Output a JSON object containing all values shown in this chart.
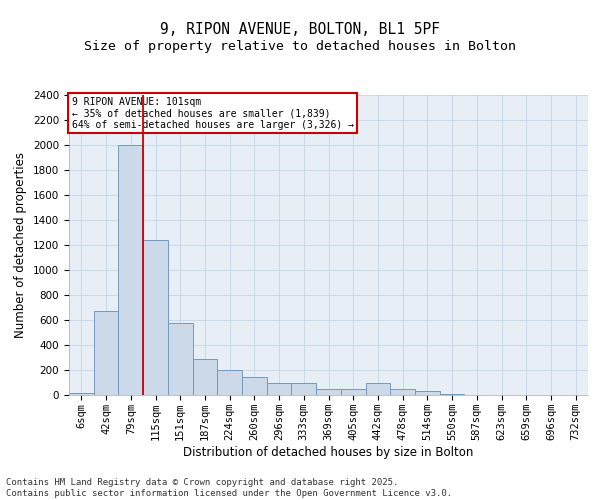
{
  "title_line1": "9, RIPON AVENUE, BOLTON, BL1 5PF",
  "title_line2": "Size of property relative to detached houses in Bolton",
  "xlabel": "Distribution of detached houses by size in Bolton",
  "ylabel": "Number of detached properties",
  "bar_color": "#ccd9e8",
  "bar_edge_color": "#7399be",
  "grid_color": "#c5d5e5",
  "background_color": "#e8eef5",
  "vline_color": "#cc0000",
  "vline_position": 2.5,
  "annotation_text": "9 RIPON AVENUE: 101sqm\n← 35% of detached houses are smaller (1,839)\n64% of semi-detached houses are larger (3,326) →",
  "annotation_box_color": "#cc0000",
  "categories": [
    "6sqm",
    "42sqm",
    "79sqm",
    "115sqm",
    "151sqm",
    "187sqm",
    "224sqm",
    "260sqm",
    "296sqm",
    "333sqm",
    "369sqm",
    "405sqm",
    "442sqm",
    "478sqm",
    "514sqm",
    "550sqm",
    "587sqm",
    "623sqm",
    "659sqm",
    "696sqm",
    "732sqm"
  ],
  "values": [
    15,
    670,
    2000,
    1240,
    580,
    290,
    200,
    145,
    100,
    100,
    50,
    50,
    100,
    50,
    30,
    5,
    3,
    2,
    1,
    1,
    1
  ],
  "ylim": [
    0,
    2400
  ],
  "yticks": [
    0,
    200,
    400,
    600,
    800,
    1000,
    1200,
    1400,
    1600,
    1800,
    2000,
    2200,
    2400
  ],
  "footer_text": "Contains HM Land Registry data © Crown copyright and database right 2025.\nContains public sector information licensed under the Open Government Licence v3.0.",
  "title_fontsize": 10.5,
  "subtitle_fontsize": 9.5,
  "axis_label_fontsize": 8.5,
  "tick_fontsize": 7.5,
  "footer_fontsize": 6.5
}
